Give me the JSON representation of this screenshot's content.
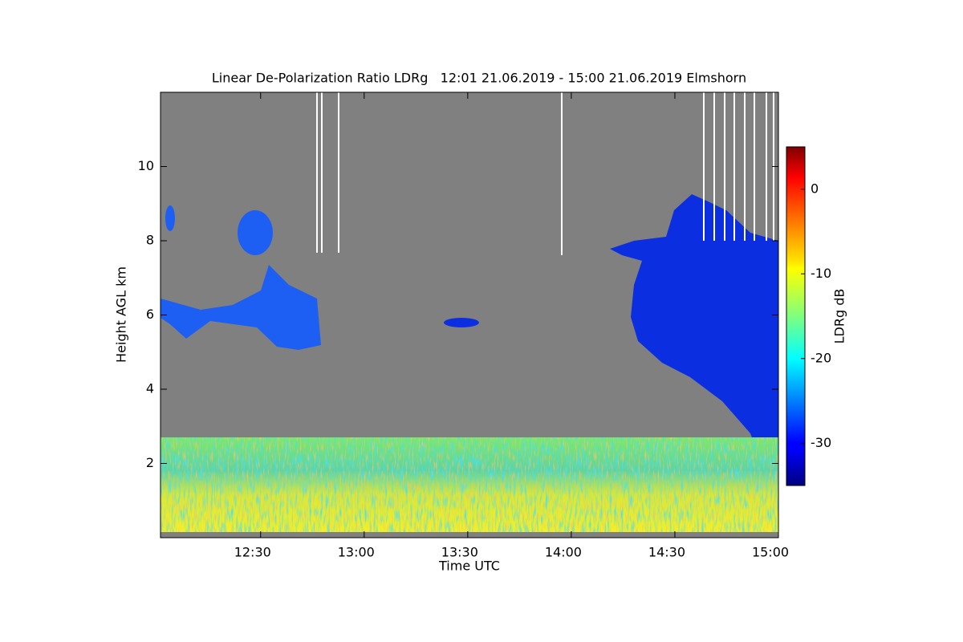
{
  "chart_data": {
    "type": "heatmap",
    "title": "Linear De-Polarization Ratio LDRg   12:01 21.06.2019 - 15:00 21.06.2019 Elmshorn",
    "x_label": "Time UTC",
    "y_label": "Height AGL km",
    "colorbar_label": "LDRg dB",
    "colormap": "jet",
    "xlim": [
      721,
      900
    ],
    "xticks": [
      {
        "value": 750,
        "label": "12:30"
      },
      {
        "value": 780,
        "label": "13:00"
      },
      {
        "value": 810,
        "label": "13:30"
      },
      {
        "value": 840,
        "label": "14:00"
      },
      {
        "value": 870,
        "label": "14:30"
      },
      {
        "value": 900,
        "label": "15:00"
      }
    ],
    "ylim": [
      0,
      12
    ],
    "yticks": [
      2,
      4,
      6,
      8,
      10
    ],
    "clim": [
      -35,
      5
    ],
    "cticks": [
      0,
      -10,
      -20,
      -30
    ]
  }
}
